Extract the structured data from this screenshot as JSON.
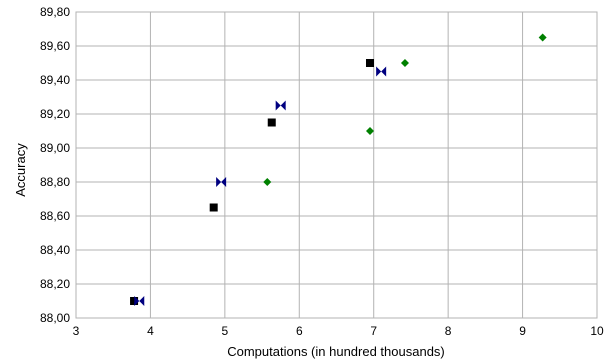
{
  "chart_data": {
    "type": "scatter",
    "xlabel": "Computations (in hundred thousands)",
    "ylabel": "Accuracy",
    "xlim": [
      3,
      10
    ],
    "ylim": [
      88.0,
      89.8
    ],
    "x_ticks": [
      3,
      4,
      5,
      6,
      7,
      8,
      9,
      10
    ],
    "y_ticks": [
      88.0,
      88.2,
      88.4,
      88.6,
      88.8,
      89.0,
      89.2,
      89.4,
      89.6,
      89.8
    ],
    "x_tick_labels": [
      "3",
      "4",
      "5",
      "6",
      "7",
      "8",
      "9",
      "10"
    ],
    "y_tick_labels": [
      "88,00",
      "88,20",
      "88,40",
      "88,60",
      "88,80",
      "89,00",
      "89,20",
      "89,40",
      "89,60",
      "89,80"
    ],
    "grid": true,
    "legend": "none",
    "series": [
      {
        "marker": "square",
        "color": "#000000",
        "points": [
          {
            "x": 3.78,
            "y": 88.1
          },
          {
            "x": 4.85,
            "y": 88.65
          },
          {
            "x": 5.63,
            "y": 89.15
          },
          {
            "x": 6.95,
            "y": 89.5
          }
        ]
      },
      {
        "marker": "bowtie",
        "color": "#000080",
        "points": [
          {
            "x": 3.85,
            "y": 88.1
          },
          {
            "x": 4.95,
            "y": 88.8
          },
          {
            "x": 5.75,
            "y": 89.25
          },
          {
            "x": 7.1,
            "y": 89.45
          }
        ]
      },
      {
        "marker": "diamond",
        "color": "#008000",
        "points": [
          {
            "x": 5.57,
            "y": 88.8
          },
          {
            "x": 6.95,
            "y": 89.1
          },
          {
            "x": 7.42,
            "y": 89.5
          },
          {
            "x": 9.27,
            "y": 89.65
          }
        ]
      }
    ]
  }
}
